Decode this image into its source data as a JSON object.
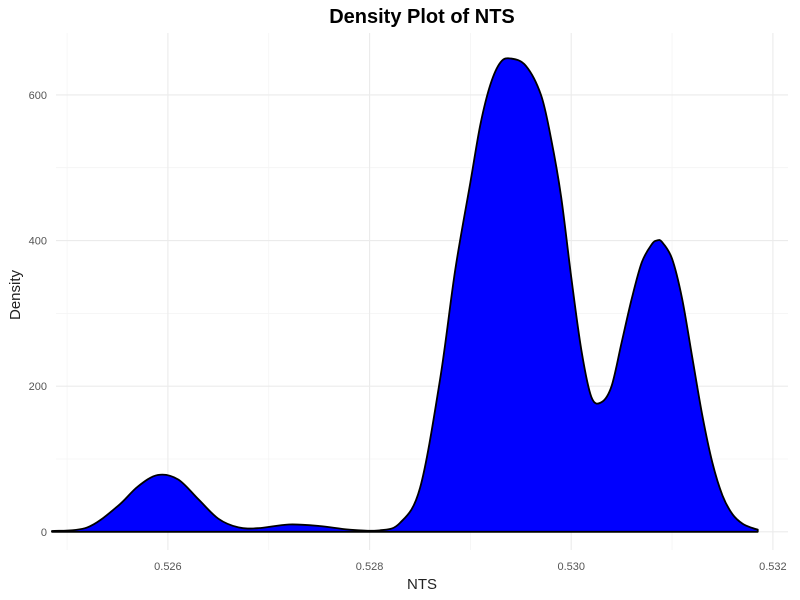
{
  "chart_data": {
    "type": "area",
    "title": "Density Plot of NTS",
    "xlabel": "NTS",
    "ylabel": "Density",
    "xlim": [
      0.52489,
      0.53215
    ],
    "ylim": [
      -25,
      685
    ],
    "x_ticks": [
      0.526,
      0.528,
      0.53,
      0.532
    ],
    "x_tick_labels": [
      "0.526",
      "0.528",
      "0.530",
      "0.532"
    ],
    "y_ticks": [
      0,
      200,
      400,
      600
    ],
    "y_tick_labels": [
      "0",
      "200",
      "400",
      "600"
    ],
    "grid": true,
    "legend": "none",
    "fill_color": "#0000ff",
    "line_color": "#000000",
    "series": [
      {
        "x": [
          0.52485,
          0.5252,
          0.5255,
          0.5257,
          0.5259,
          0.5261,
          0.5263,
          0.5265,
          0.5267,
          0.5269,
          0.5272,
          0.5275,
          0.5278,
          0.5281,
          0.5283,
          0.5285,
          0.5287,
          0.52885,
          0.529,
          0.5291,
          0.5292,
          0.5293,
          0.5294,
          0.52955,
          0.5297,
          0.5298,
          0.5299,
          0.53,
          0.5301,
          0.5302,
          0.5303,
          0.5304,
          0.5305,
          0.5306,
          0.5307,
          0.5308,
          0.53085,
          0.5309,
          0.531,
          0.5311,
          0.5312,
          0.5313,
          0.5314,
          0.5315,
          0.5316,
          0.5317,
          0.5318,
          0.53185
        ],
        "y": [
          1,
          6,
          35,
          62,
          78,
          72,
          45,
          18,
          6,
          5,
          10,
          8,
          3,
          2,
          12,
          60,
          210,
          360,
          480,
          560,
          615,
          645,
          650,
          640,
          600,
          540,
          460,
          350,
          250,
          185,
          178,
          200,
          260,
          320,
          370,
          395,
          400,
          398,
          375,
          320,
          240,
          160,
          95,
          50,
          24,
          11,
          5,
          3
        ]
      }
    ]
  }
}
